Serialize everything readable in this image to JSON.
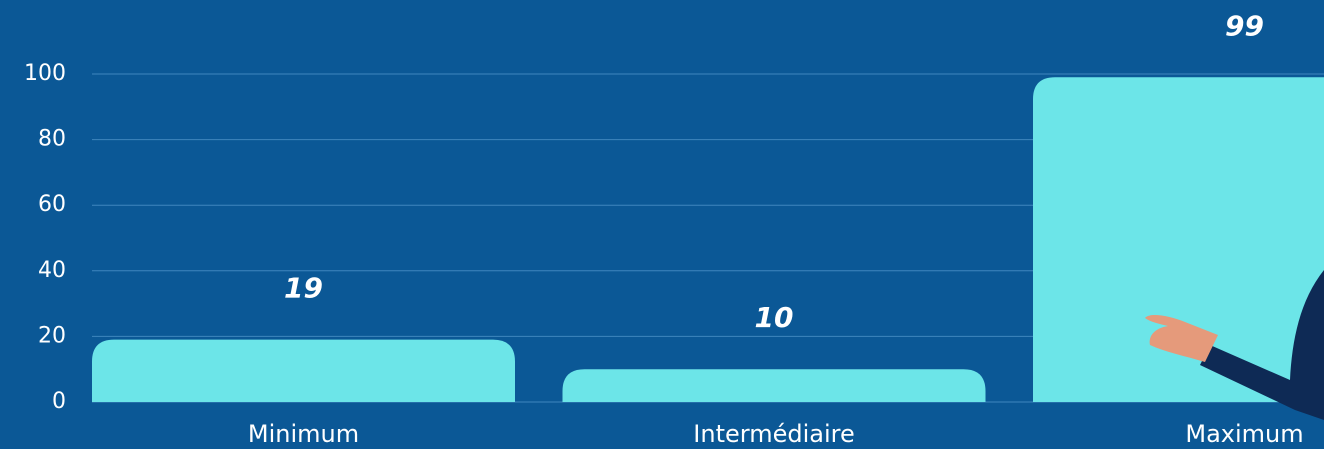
{
  "chart_data": {
    "type": "bar",
    "categories": [
      "Minimum",
      "Intermédiaire",
      "Maximum"
    ],
    "values": [
      19,
      10,
      99
    ],
    "color": "#6ce5e8",
    "ylim": [
      0,
      100
    ],
    "yticks": [
      0,
      20,
      40,
      60,
      80,
      100
    ],
    "grid": true
  }
}
